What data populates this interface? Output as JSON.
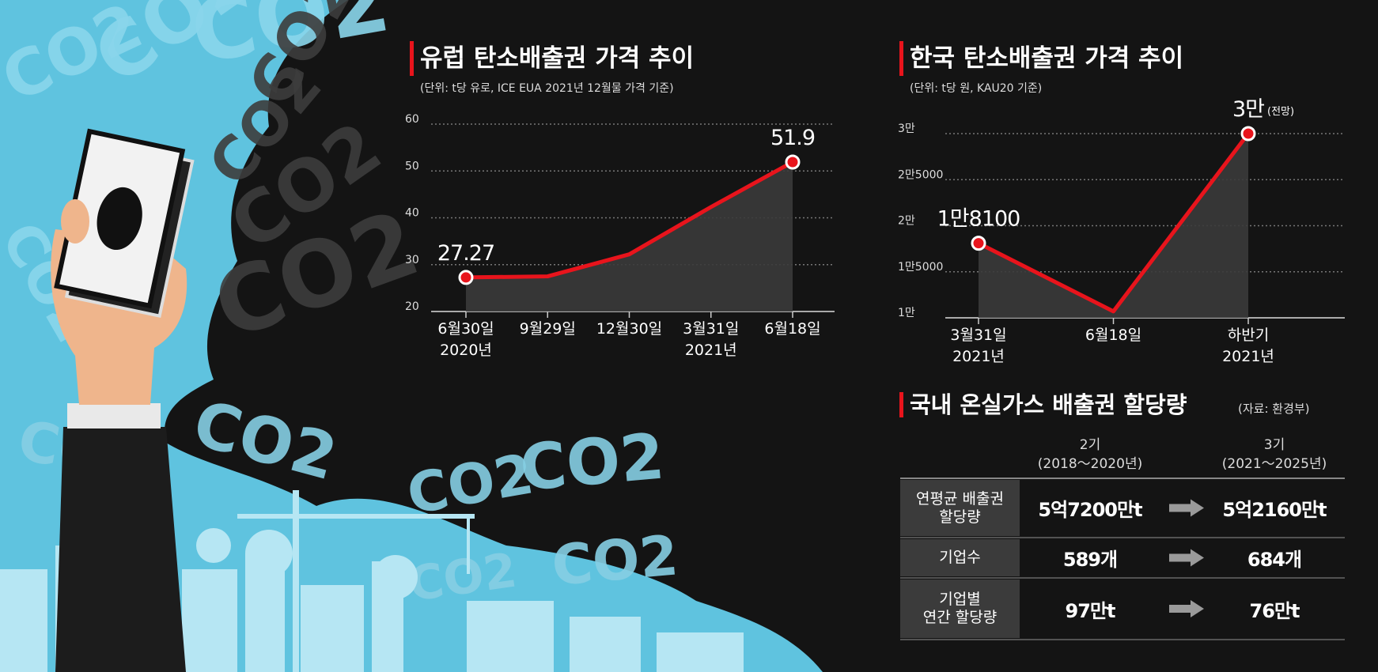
{
  "background_text": "CO2",
  "chart_data": [
    {
      "type": "line",
      "title": "유럽 탄소배출권 가격 추이",
      "subtitle": "(단위: t당 유로, ICE EUA 2021년 12월물 가격 기준)",
      "categories": [
        "6월30일",
        "9월29일",
        "12월30일",
        "3월31일",
        "6월18일"
      ],
      "category_sublabels": [
        "2020년",
        null,
        null,
        "2021년",
        null
      ],
      "values": [
        27.27,
        27.5,
        32.2,
        42.3,
        51.9
      ],
      "value_labels": [
        "27.27",
        null,
        null,
        null,
        "51.9"
      ],
      "color": "#e8141c",
      "ylim": [
        20,
        60
      ],
      "yticks": [
        20,
        30,
        40,
        50,
        60
      ],
      "grid": true
    },
    {
      "type": "line",
      "title": "한국 탄소배출권 가격 추이",
      "subtitle": "(단위: t당 원, KAU20 기준)",
      "categories": [
        "3월31일",
        "6월18일",
        "하반기"
      ],
      "category_sublabels": [
        "2021년",
        null,
        "2021년"
      ],
      "values": [
        18100,
        10700,
        30000
      ],
      "value_labels": [
        "1만8100",
        null,
        "3만"
      ],
      "annotation": "(전망)",
      "color": "#e8141c",
      "ylim": [
        10000,
        30000
      ],
      "yticks": [
        {
          "value": 10000,
          "label": "1만"
        },
        {
          "value": 15000,
          "label": "1만5000"
        },
        {
          "value": 20000,
          "label": "2만"
        },
        {
          "value": 25000,
          "label": "2만5000"
        },
        {
          "value": 30000,
          "label": "3만"
        }
      ],
      "grid": true
    }
  ],
  "table": {
    "title": "국내 온실가스 배출권 할당량",
    "source": "(자료: 환경부)",
    "columns": [
      {
        "name": "2기",
        "period": "(2018～2020년)"
      },
      {
        "name": "3기",
        "period": "(2021～2025년)"
      }
    ],
    "rows": [
      [
        "연평균 배출권\n할당량",
        "5억7200만t",
        "5억2160만t"
      ],
      [
        "기업수",
        "589개",
        "684개"
      ],
      [
        "기업별\n연간 할당량",
        "97만t",
        "76만t"
      ]
    ]
  }
}
